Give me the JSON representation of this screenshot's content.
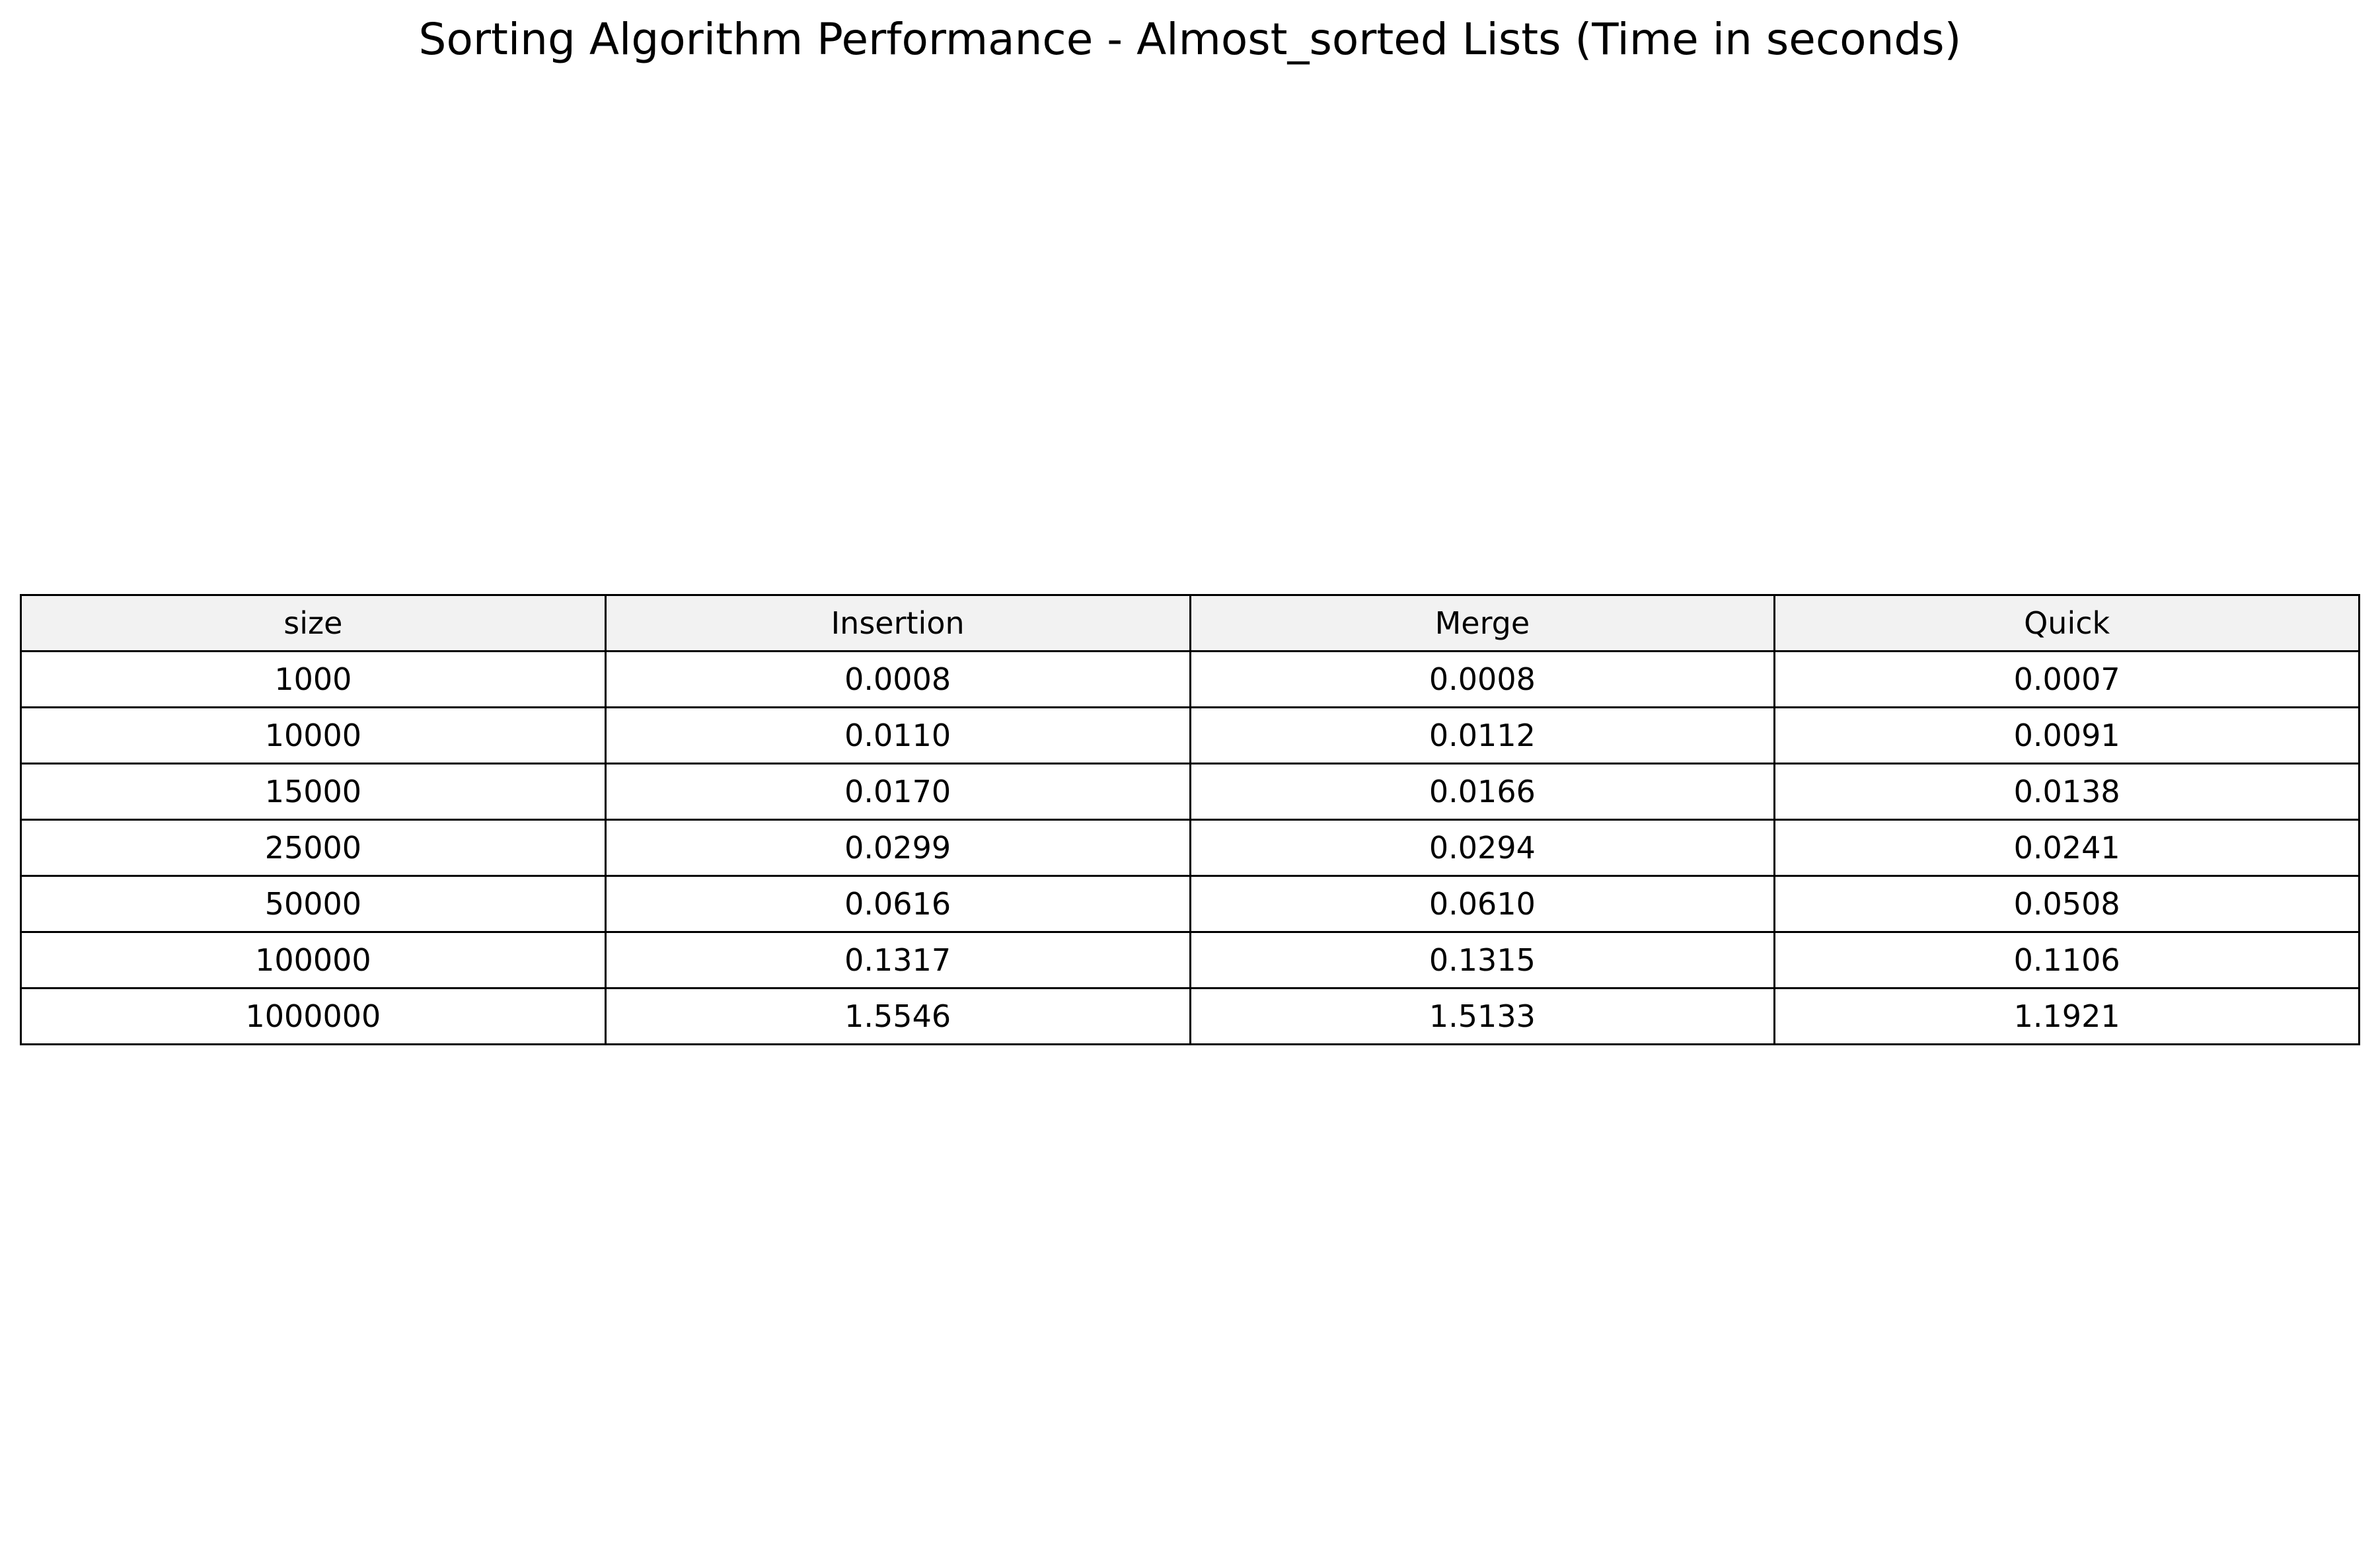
{
  "colors": {
    "header_background": "#f2f2f2",
    "border": "#000000",
    "text": "#000000",
    "background": "#ffffff"
  },
  "chart_data": {
    "type": "table",
    "title": "Sorting Algorithm Performance - Almost_sorted Lists (Time in seconds)",
    "columns": [
      "size",
      "Insertion",
      "Merge",
      "Quick"
    ],
    "rows": [
      [
        "1000",
        "0.0008",
        "0.0008",
        "0.0007"
      ],
      [
        "10000",
        "0.0110",
        "0.0112",
        "0.0091"
      ],
      [
        "15000",
        "0.0170",
        "0.0166",
        "0.0138"
      ],
      [
        "25000",
        "0.0299",
        "0.0294",
        "0.0241"
      ],
      [
        "50000",
        "0.0616",
        "0.0610",
        "0.0508"
      ],
      [
        "100000",
        "0.1317",
        "0.1315",
        "0.1106"
      ],
      [
        "1000000",
        "1.5546",
        "1.5133",
        "1.1921"
      ]
    ]
  }
}
